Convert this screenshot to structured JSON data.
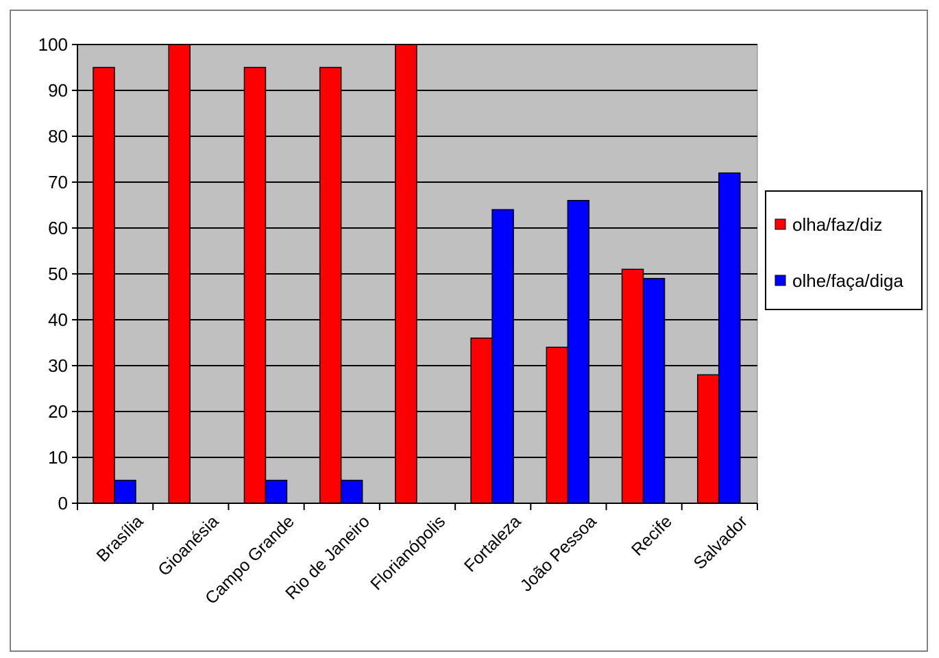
{
  "chart_data": {
    "type": "bar",
    "title": "",
    "xlabel": "",
    "ylabel": "",
    "categories": [
      "Brasília",
      "Gioanésia",
      "Campo Grande",
      "Rio de Janeiro",
      "Florianópolis",
      "Fortaleza",
      "João Pessoa",
      "Recife",
      "Salvador"
    ],
    "series": [
      {
        "name": "olha/faz/diz",
        "color": "#ff0000",
        "values": [
          95,
          100,
          95,
          95,
          100,
          36,
          34,
          51,
          28
        ]
      },
      {
        "name": "olhe/faça/diga",
        "color": "#0000ff",
        "values": [
          5,
          0,
          5,
          5,
          0,
          64,
          66,
          49,
          72
        ]
      }
    ],
    "ylim": [
      0,
      100
    ],
    "yticks": [
      0,
      10,
      20,
      30,
      40,
      50,
      60,
      70,
      80,
      90,
      100
    ],
    "grid": true,
    "plot_background": "#c0c0c0",
    "legend_position": "right"
  }
}
